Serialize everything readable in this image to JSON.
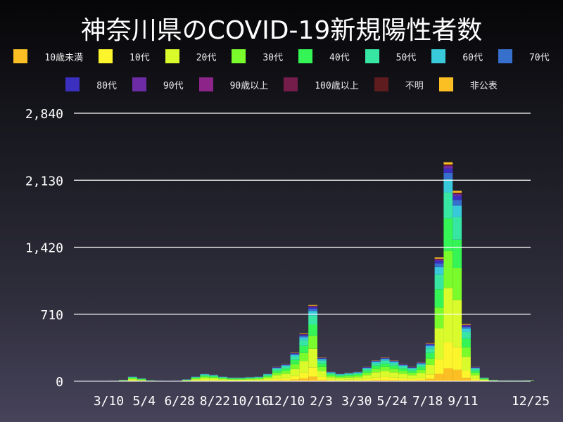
{
  "chart_data": {
    "type": "bar",
    "stacked": true,
    "title": "神奈川県のCOVID-19新規陽性者数",
    "xlabel": "",
    "ylabel": "",
    "ylim": [
      0,
      2840
    ],
    "yticks": [
      "0",
      "710",
      "1,420",
      "2,130",
      "2,840"
    ],
    "ytick_values": [
      0,
      710,
      1420,
      2130,
      2840
    ],
    "xticks": [
      "3/10",
      "5/4",
      "6/28",
      "8/22",
      "10/16",
      "12/10",
      "2/3",
      "3/30",
      "5/24",
      "7/18",
      "9/11",
      "12/25"
    ],
    "xtick_dates": [
      "2020-03-10",
      "2020-05-04",
      "2020-06-28",
      "2020-08-22",
      "2020-10-16",
      "2020-12-10",
      "2021-02-03",
      "2021-03-30",
      "2021-05-24",
      "2021-07-18",
      "2021-09-11",
      "2021-12-25"
    ],
    "x_range": [
      "2020-01-16",
      "2021-12-25"
    ],
    "grid": "horizontal",
    "legend_placement": "top",
    "x": [
      "2020-01-16",
      "2020-01-30",
      "2020-02-13",
      "2020-02-27",
      "2020-03-12",
      "2020-03-26",
      "2020-04-09",
      "2020-04-23",
      "2020-05-07",
      "2020-05-21",
      "2020-06-04",
      "2020-06-18",
      "2020-07-02",
      "2020-07-16",
      "2020-07-30",
      "2020-08-13",
      "2020-08-27",
      "2020-09-10",
      "2020-09-24",
      "2020-10-08",
      "2020-10-22",
      "2020-11-05",
      "2020-11-19",
      "2020-12-03",
      "2020-12-17",
      "2020-12-31",
      "2021-01-14",
      "2021-01-28",
      "2021-02-11",
      "2021-02-25",
      "2021-03-11",
      "2021-03-25",
      "2021-04-08",
      "2021-04-22",
      "2021-05-06",
      "2021-05-20",
      "2021-06-03",
      "2021-06-17",
      "2021-07-01",
      "2021-07-15",
      "2021-07-29",
      "2021-08-12",
      "2021-08-26",
      "2021-09-09",
      "2021-09-23",
      "2021-10-07",
      "2021-10-21",
      "2021-11-04",
      "2021-11-18",
      "2021-12-02",
      "2021-12-16"
    ],
    "daily_total": [
      0,
      0,
      1,
      3,
      5,
      15,
      50,
      30,
      10,
      5,
      3,
      5,
      20,
      50,
      80,
      70,
      50,
      40,
      40,
      45,
      50,
      80,
      150,
      180,
      300,
      500,
      800,
      250,
      100,
      80,
      90,
      100,
      150,
      220,
      250,
      220,
      180,
      150,
      200,
      400,
      1300,
      2300,
      2000,
      600,
      150,
      40,
      15,
      8,
      8,
      8,
      10
    ],
    "series": [
      {
        "name": "10歳未満",
        "color": "#fbbf24",
        "share": 0.06
      },
      {
        "name": "10代",
        "color": "#fdf52c",
        "share": 0.12
      },
      {
        "name": "20代",
        "color": "#d9fb2c",
        "share": 0.25
      },
      {
        "name": "30代",
        "color": "#7afb2c",
        "share": 0.17
      },
      {
        "name": "40代",
        "color": "#35f455",
        "share": 0.15
      },
      {
        "name": "50代",
        "color": "#38e6a4",
        "share": 0.12
      },
      {
        "name": "60代",
        "color": "#38c9da",
        "share": 0.06
      },
      {
        "name": "70代",
        "color": "#3670cc",
        "share": 0.03
      },
      {
        "name": "80代",
        "color": "#3a2fbe",
        "share": 0.02
      },
      {
        "name": "90代",
        "color": "#6e2ba6",
        "share": 0.01
      },
      {
        "name": "90歳以上",
        "color": "#8c2489",
        "share": 0.003
      },
      {
        "name": "100歳以上",
        "color": "#741d4a",
        "share": 0.001
      },
      {
        "name": "不明",
        "color": "#5e1c1e",
        "share": 0.005
      },
      {
        "name": "非公表",
        "color": "#fbbf24",
        "share": 0.01
      }
    ]
  }
}
